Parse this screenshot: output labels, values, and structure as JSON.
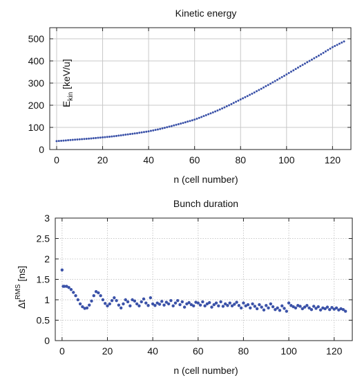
{
  "colors": {
    "points": "#3b52a8",
    "grid": "#c8c8c8",
    "frame": "#222222"
  },
  "chart_data": [
    {
      "type": "scatter",
      "title": "Kinetic energy",
      "xlabel": "n (cell number)",
      "ylabel": {
        "main": "E",
        "sub": "kin",
        "unit": "[keV/u]"
      },
      "xlim": [
        -3,
        128
      ],
      "ylim": [
        0,
        550
      ],
      "xticks": [
        0,
        20,
        40,
        60,
        80,
        100,
        120
      ],
      "yticks": [
        0,
        100,
        200,
        300,
        400,
        500
      ],
      "xtick_labels": [
        "0",
        "20",
        "40",
        "60",
        "80",
        "100",
        "120"
      ],
      "ytick_labels": [
        "0",
        "100",
        "200",
        "300",
        "400",
        "500"
      ],
      "grid": "solid",
      "series": [
        {
          "x": [
            0,
            5,
            10,
            15,
            20,
            25,
            30,
            35,
            40,
            45,
            50,
            55,
            60,
            65,
            70,
            75,
            80,
            85,
            90,
            95,
            100,
            105,
            110,
            115,
            120,
            125
          ],
          "values": [
            38,
            42,
            46,
            50,
            55,
            60,
            67,
            74,
            82,
            93,
            106,
            120,
            135,
            155,
            176,
            200,
            226,
            252,
            280,
            309,
            339,
            370,
            400,
            430,
            462,
            488
          ]
        }
      ]
    },
    {
      "type": "scatter",
      "title": "Bunch duration",
      "xlabel": "n (cell number)",
      "ylabel": {
        "main": "Δt",
        "sup": "RMS",
        "unit": "[ns]"
      },
      "xlim": [
        -3,
        128
      ],
      "ylim": [
        0,
        3
      ],
      "xticks": [
        0,
        20,
        40,
        60,
        80,
        100,
        120
      ],
      "yticks": [
        0,
        0.5,
        1,
        1.5,
        2,
        2.5,
        3
      ],
      "xtick_labels": [
        "0",
        "20",
        "40",
        "60",
        "80",
        "100",
        "120"
      ],
      "ytick_labels": [
        "0",
        "0.5",
        "1",
        "1.5",
        "2",
        "2.5",
        "3"
      ],
      "grid": "dotted",
      "series": [
        {
          "x": [
            0,
            0.5,
            1,
            2,
            3,
            4,
            5,
            6,
            7,
            8,
            9,
            10,
            11,
            12,
            13,
            14,
            15,
            16,
            17,
            18,
            19,
            20,
            21,
            22,
            23,
            24,
            25,
            26,
            27,
            28,
            29,
            30,
            31,
            32,
            33,
            34,
            35,
            36,
            37,
            38,
            39,
            40,
            41,
            42,
            43,
            44,
            45,
            46,
            47,
            48,
            49,
            50,
            51,
            52,
            53,
            54,
            55,
            56,
            57,
            58,
            59,
            60,
            61,
            62,
            63,
            64,
            65,
            66,
            67,
            68,
            69,
            70,
            71,
            72,
            73,
            74,
            75,
            76,
            77,
            78,
            79,
            80,
            81,
            82,
            83,
            84,
            85,
            86,
            87,
            88,
            89,
            90,
            91,
            92,
            93,
            94,
            95,
            96,
            97,
            98,
            99,
            100,
            101,
            102,
            103,
            104,
            105,
            106,
            107,
            108,
            109,
            110,
            111,
            112,
            113,
            114,
            115,
            116,
            117,
            118,
            119,
            120,
            121,
            122,
            123,
            124,
            125
          ],
          "values": [
            1.73,
            1.33,
            1.33,
            1.33,
            1.3,
            1.25,
            1.18,
            1.1,
            1.0,
            0.9,
            0.83,
            0.79,
            0.8,
            0.87,
            0.97,
            1.1,
            1.2,
            1.17,
            1.1,
            1.0,
            0.91,
            0.85,
            0.9,
            0.98,
            1.05,
            0.98,
            0.87,
            0.8,
            0.9,
            1.0,
            0.95,
            0.85,
            1.0,
            0.97,
            0.9,
            0.85,
            0.95,
            1.02,
            0.92,
            0.86,
            1.05,
            0.9,
            0.86,
            0.92,
            0.89,
            0.96,
            0.87,
            0.94,
            0.9,
            0.98,
            0.85,
            0.92,
            0.98,
            0.88,
            0.95,
            0.82,
            0.9,
            0.93,
            0.88,
            0.85,
            0.94,
            0.92,
            0.87,
            0.95,
            0.85,
            0.9,
            0.93,
            0.82,
            0.88,
            0.92,
            0.85,
            0.95,
            0.84,
            0.9,
            0.86,
            0.92,
            0.85,
            0.89,
            0.94,
            0.86,
            0.8,
            0.92,
            0.85,
            0.88,
            0.8,
            0.9,
            0.84,
            0.78,
            0.88,
            0.82,
            0.75,
            0.86,
            0.8,
            0.9,
            0.83,
            0.76,
            0.8,
            0.74,
            0.85,
            0.79,
            0.72,
            0.92,
            0.86,
            0.83,
            0.8,
            0.86,
            0.84,
            0.78,
            0.82,
            0.86,
            0.8,
            0.76,
            0.84,
            0.79,
            0.83,
            0.75,
            0.8,
            0.78,
            0.82,
            0.76,
            0.81,
            0.77,
            0.8,
            0.75,
            0.78,
            0.76,
            0.72
          ]
        }
      ]
    }
  ]
}
